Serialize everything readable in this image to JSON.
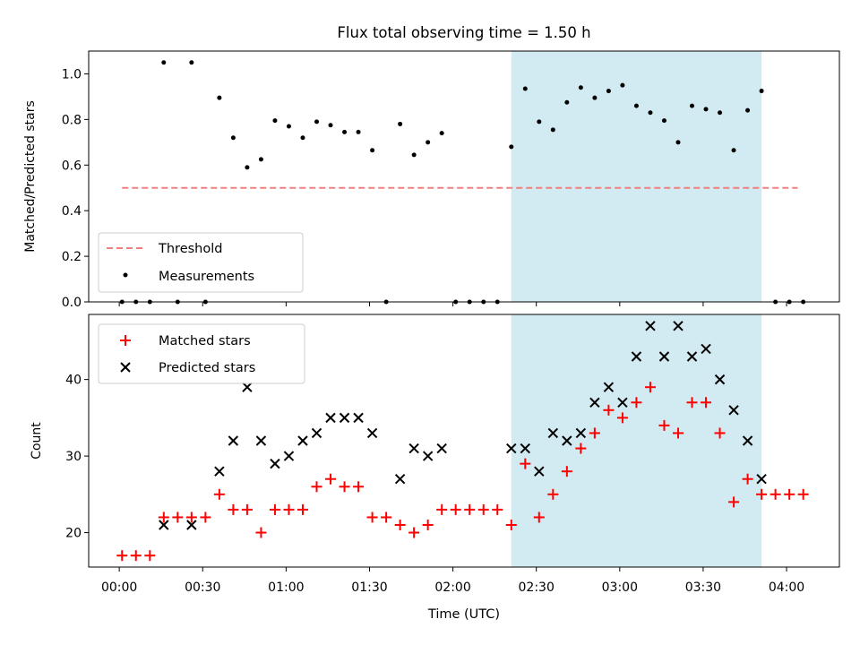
{
  "chart_data": [
    {
      "type": "scatter",
      "title": "Flux total observing time = 1.50 h",
      "xlabel": "",
      "ylabel": "Matched/Predicted stars",
      "ylim": [
        0,
        1.1
      ],
      "yticks": [
        "0.0",
        "0.2",
        "0.4",
        "0.6",
        "0.8",
        "1.0"
      ],
      "shaded_span": {
        "x_start": 141,
        "x_end": 231,
        "color": "#add8e6"
      },
      "threshold": {
        "name": "Threshold",
        "value": 0.5,
        "x_start": 1,
        "x_end": 244,
        "color": "#f08080",
        "style": "dashed"
      },
      "series": [
        {
          "name": "Measurements",
          "marker": "dot",
          "color": "#000000",
          "x": [
            1,
            6,
            11,
            16,
            21,
            26,
            31,
            36,
            41,
            46,
            51,
            56,
            61,
            66,
            71,
            76,
            81,
            86,
            91,
            96,
            101,
            106,
            111,
            116,
            121,
            126,
            131,
            136,
            141,
            146,
            151,
            156,
            161,
            166,
            171,
            176,
            181,
            186,
            191,
            196,
            201,
            206,
            211,
            216,
            221,
            226,
            231,
            236,
            241,
            246
          ],
          "y": [
            0,
            0,
            0,
            1.05,
            0,
            1.05,
            0,
            0.895,
            0.72,
            0.59,
            0.625,
            0.795,
            0.77,
            0.72,
            0.79,
            0.775,
            0.745,
            0.745,
            0.665,
            0,
            0.78,
            0.645,
            0.7,
            0.74,
            0,
            0,
            0,
            0,
            0.68,
            0.935,
            0.79,
            0.755,
            0.875,
            0.94,
            0.895,
            0.925,
            0.95,
            0.86,
            0.83,
            0.795,
            0.7,
            0.86,
            0.845,
            0.83,
            0.665,
            0.84,
            0.925,
            0,
            0,
            0
          ]
        }
      ],
      "legend": {
        "position": "lower-left",
        "entries": [
          "Threshold",
          "Measurements"
        ]
      }
    },
    {
      "type": "scatter",
      "title": "",
      "xlabel": "Time (UTC)",
      "ylabel": "Count",
      "ylim": [
        15.5,
        48.5
      ],
      "yticks": [
        "20",
        "30",
        "40"
      ],
      "xlim": [
        -11,
        259
      ],
      "xticks": [
        {
          "minutes": 0,
          "label": "00:00"
        },
        {
          "minutes": 30,
          "label": "00:30"
        },
        {
          "minutes": 60,
          "label": "01:00"
        },
        {
          "minutes": 90,
          "label": "01:30"
        },
        {
          "minutes": 120,
          "label": "02:00"
        },
        {
          "minutes": 150,
          "label": "02:30"
        },
        {
          "minutes": 180,
          "label": "03:00"
        },
        {
          "minutes": 210,
          "label": "03:30"
        },
        {
          "minutes": 240,
          "label": "04:00"
        }
      ],
      "shaded_span": {
        "x_start": 141,
        "x_end": 231,
        "color": "#add8e6"
      },
      "series": [
        {
          "name": "Matched stars",
          "marker": "plus",
          "color": "#ff0000",
          "x": [
            1,
            6,
            11,
            16,
            21,
            26,
            31,
            36,
            41,
            46,
            51,
            56,
            61,
            66,
            71,
            76,
            81,
            86,
            91,
            96,
            101,
            106,
            111,
            116,
            121,
            126,
            131,
            136,
            141,
            146,
            151,
            156,
            161,
            166,
            171,
            176,
            181,
            186,
            191,
            196,
            201,
            206,
            211,
            216,
            221,
            226,
            231,
            236,
            241,
            246
          ],
          "y": [
            17,
            17,
            17,
            22,
            22,
            22,
            22,
            25,
            23,
            23,
            20,
            23,
            23,
            23,
            26,
            27,
            26,
            26,
            22,
            22,
            21,
            20,
            21,
            23,
            23,
            23,
            23,
            23,
            21,
            29,
            22,
            25,
            28,
            31,
            33,
            36,
            35,
            37,
            39,
            34,
            33,
            37,
            37,
            33,
            24,
            27,
            25,
            25,
            25,
            25
          ]
        },
        {
          "name": "Predicted stars",
          "marker": "x",
          "color": "#000000",
          "x": [
            16,
            26,
            36,
            41,
            46,
            51,
            56,
            61,
            66,
            71,
            76,
            81,
            86,
            91,
            101,
            106,
            111,
            116,
            141,
            146,
            151,
            156,
            161,
            166,
            171,
            176,
            181,
            186,
            191,
            196,
            201,
            206,
            211,
            216,
            221,
            226,
            231
          ],
          "y": [
            21,
            21,
            28,
            32,
            39,
            32,
            29,
            30,
            32,
            33,
            35,
            35,
            35,
            33,
            27,
            31,
            30,
            31,
            31,
            31,
            28,
            33,
            32,
            33,
            37,
            39,
            37,
            43,
            47,
            43,
            47,
            43,
            44,
            40,
            36,
            32,
            27
          ]
        }
      ],
      "legend": {
        "position": "upper-left",
        "entries": [
          "Matched stars",
          "Predicted stars"
        ]
      }
    }
  ]
}
